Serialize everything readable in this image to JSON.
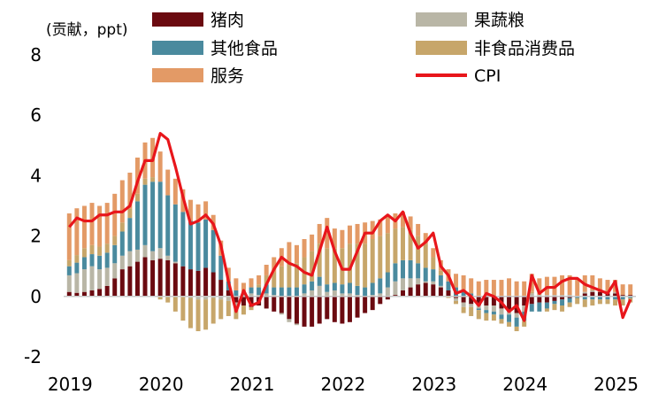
{
  "chart_data": {
    "type": "bar",
    "subtype": "stacked-bar-with-line",
    "unit_label": "(贡献，ppt)",
    "ylim": [
      -2,
      8
    ],
    "yticks": [
      "8",
      "6",
      "4",
      "2",
      "0",
      "-2"
    ],
    "ytick_values": [
      8,
      6,
      4,
      2,
      0,
      -2
    ],
    "year_labels": [
      "2019",
      "2020",
      "2021",
      "2022",
      "2023",
      "2024",
      "2025"
    ],
    "period": "2019-01 to 2025-02 (monthly)",
    "colors": {
      "pork": "#6b0a10",
      "fruitveg": "#b9b6a6",
      "otherfood": "#4a8a9e",
      "nonfood": "#c7a66a",
      "services": "#e39a66",
      "cpi": "#e8161b"
    },
    "legend": [
      {
        "key": "pork",
        "label": "猪肉"
      },
      {
        "key": "fruitveg",
        "label": "果蔬粮"
      },
      {
        "key": "otherfood",
        "label": "其他食品"
      },
      {
        "key": "nonfood",
        "label": "非食品消费品"
      },
      {
        "key": "services",
        "label": "服务"
      },
      {
        "key": "cpi",
        "label": "CPI"
      }
    ],
    "cpi": [
      2.3,
      2.6,
      2.5,
      2.5,
      2.7,
      2.7,
      2.8,
      2.8,
      3.0,
      3.8,
      4.5,
      4.5,
      5.4,
      5.2,
      4.3,
      3.3,
      2.4,
      2.5,
      2.7,
      2.4,
      1.7,
      0.5,
      -0.5,
      0.2,
      -0.3,
      -0.2,
      0.4,
      0.9,
      1.3,
      1.1,
      1.0,
      0.8,
      0.7,
      1.5,
      2.3,
      1.5,
      0.9,
      0.9,
      1.5,
      2.1,
      2.1,
      2.5,
      2.7,
      2.5,
      2.8,
      2.1,
      1.6,
      1.8,
      2.1,
      1.0,
      0.7,
      0.1,
      0.2,
      0.0,
      -0.3,
      0.1,
      0.0,
      -0.2,
      -0.5,
      -0.3,
      -0.8,
      0.7,
      0.1,
      0.3,
      0.3,
      0.5,
      0.6,
      0.6,
      0.4,
      0.3,
      0.2,
      0.1,
      0.5,
      -0.7,
      -0.1
    ],
    "series": [
      {
        "name": "猪肉",
        "key": "pork",
        "values": [
          0.15,
          0.12,
          0.15,
          0.2,
          0.25,
          0.35,
          0.6,
          0.9,
          1.0,
          1.15,
          1.3,
          1.2,
          1.25,
          1.2,
          1.1,
          1.0,
          0.9,
          0.85,
          0.95,
          0.8,
          0.55,
          0.2,
          -0.2,
          -0.3,
          -0.35,
          -0.3,
          -0.4,
          -0.5,
          -0.55,
          -0.75,
          -0.9,
          -1.0,
          -1.0,
          -0.9,
          -0.75,
          -0.85,
          -0.9,
          -0.85,
          -0.7,
          -0.55,
          -0.45,
          -0.25,
          -0.1,
          0.05,
          0.2,
          0.3,
          0.4,
          0.45,
          0.4,
          0.3,
          0.2,
          -0.05,
          -0.2,
          -0.25,
          -0.3,
          -0.3,
          -0.3,
          -0.4,
          -0.5,
          -0.55,
          -0.3,
          -0.25,
          -0.2,
          -0.2,
          -0.15,
          -0.1,
          -0.05,
          0.0,
          0.1,
          0.15,
          0.15,
          0.1,
          0.1,
          0.05,
          0.05
        ]
      },
      {
        "name": "果蔬粮",
        "key": "fruitveg",
        "values": [
          0.55,
          0.65,
          0.75,
          0.8,
          0.65,
          0.6,
          0.5,
          0.45,
          0.5,
          0.4,
          0.4,
          0.3,
          0.35,
          0.15,
          0.05,
          0.0,
          -0.05,
          -0.1,
          -0.1,
          -0.05,
          -0.1,
          -0.15,
          -0.1,
          0.05,
          0.1,
          0.05,
          0.1,
          0.05,
          -0.05,
          -0.1,
          -0.05,
          0.1,
          0.2,
          0.35,
          0.15,
          0.2,
          0.1,
          0.1,
          0.05,
          0.0,
          0.05,
          0.1,
          0.3,
          0.45,
          0.4,
          0.3,
          0.2,
          0.05,
          0.1,
          0.05,
          0.0,
          -0.1,
          -0.15,
          -0.1,
          -0.1,
          -0.15,
          -0.2,
          -0.2,
          -0.1,
          -0.15,
          -0.2,
          0.1,
          0.05,
          0.05,
          0.05,
          0.05,
          0.05,
          0.0,
          0.05,
          0.05,
          0.0,
          0.0,
          0.05,
          0.0,
          0.0
        ]
      },
      {
        "name": "其他食品",
        "key": "otherfood",
        "values": [
          0.3,
          0.35,
          0.4,
          0.4,
          0.45,
          0.5,
          0.6,
          0.8,
          1.1,
          1.6,
          2.0,
          2.3,
          2.2,
          2.0,
          1.9,
          1.8,
          1.6,
          1.6,
          1.6,
          1.4,
          0.8,
          0.3,
          0.2,
          0.1,
          0.2,
          0.25,
          0.3,
          0.25,
          0.3,
          0.3,
          0.3,
          0.3,
          0.3,
          0.3,
          0.25,
          0.25,
          0.3,
          0.35,
          0.3,
          0.3,
          0.4,
          0.5,
          0.5,
          0.6,
          0.6,
          0.6,
          0.5,
          0.45,
          0.4,
          0.35,
          0.3,
          0.3,
          0.2,
          0.1,
          -0.05,
          -0.1,
          -0.1,
          -0.15,
          -0.25,
          -0.3,
          -0.3,
          -0.25,
          -0.3,
          -0.2,
          -0.1,
          -0.2,
          -0.15,
          -0.05,
          -0.1,
          -0.1,
          -0.1,
          -0.1,
          -0.1,
          -0.1,
          -0.05
        ]
      },
      {
        "name": "非食品消费品",
        "key": "nonfood",
        "values": [
          0.2,
          0.25,
          0.3,
          0.3,
          0.3,
          0.3,
          0.3,
          0.3,
          0.3,
          0.25,
          0.2,
          0.15,
          -0.1,
          -0.2,
          -0.5,
          -0.8,
          -1.0,
          -1.05,
          -1.0,
          -0.85,
          -0.65,
          -0.5,
          -0.45,
          -0.3,
          -0.1,
          0.1,
          0.3,
          0.5,
          0.7,
          0.8,
          0.8,
          0.9,
          1.0,
          1.1,
          1.2,
          1.15,
          1.2,
          1.3,
          1.4,
          1.45,
          1.45,
          1.4,
          1.3,
          1.15,
          1.1,
          1.0,
          0.9,
          0.8,
          0.4,
          0.15,
          -0.05,
          -0.1,
          -0.2,
          -0.3,
          -0.3,
          -0.25,
          -0.2,
          -0.15,
          -0.15,
          -0.15,
          -0.2,
          0.05,
          0.0,
          -0.1,
          -0.2,
          -0.2,
          -0.15,
          -0.2,
          -0.25,
          -0.2,
          -0.15,
          -0.15,
          -0.2,
          -0.2,
          -0.15
        ]
      },
      {
        "name": "服务",
        "key": "services",
        "values": [
          1.55,
          1.55,
          1.4,
          1.4,
          1.35,
          1.35,
          1.4,
          1.4,
          1.2,
          1.2,
          1.2,
          1.3,
          1.0,
          0.85,
          0.85,
          0.75,
          0.7,
          0.6,
          0.6,
          0.5,
          0.5,
          0.45,
          0.4,
          0.3,
          0.3,
          0.3,
          0.35,
          0.5,
          0.6,
          0.7,
          0.6,
          0.6,
          0.55,
          0.65,
          1.0,
          0.65,
          0.6,
          0.6,
          0.65,
          0.7,
          0.6,
          0.55,
          0.55,
          0.5,
          0.5,
          0.45,
          0.4,
          0.35,
          0.3,
          0.35,
          0.4,
          0.45,
          0.5,
          0.5,
          0.5,
          0.55,
          0.55,
          0.55,
          0.6,
          0.5,
          0.5,
          0.6,
          0.55,
          0.6,
          0.6,
          0.65,
          0.65,
          0.6,
          0.55,
          0.5,
          0.45,
          0.45,
          0.4,
          0.35,
          0.35
        ]
      }
    ]
  }
}
